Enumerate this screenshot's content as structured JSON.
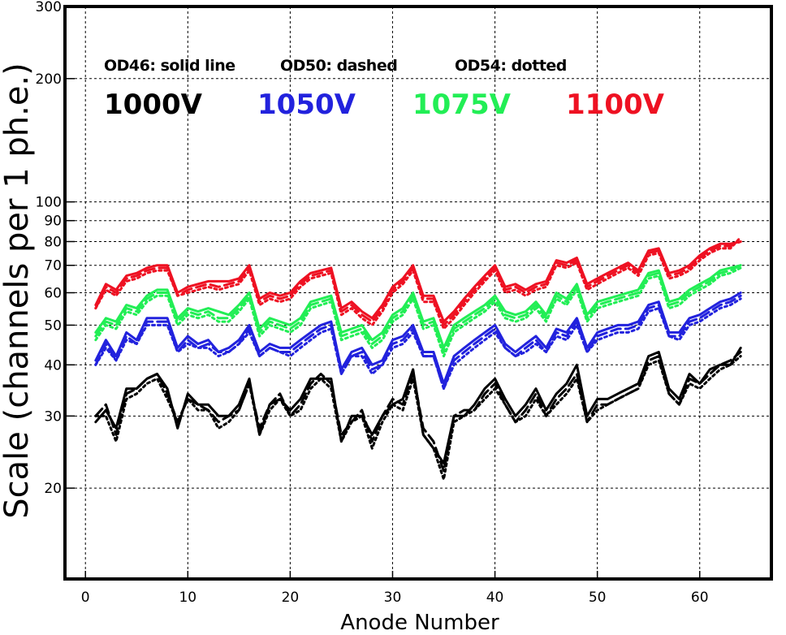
{
  "chart_data": {
    "type": "line",
    "xlabel": "Anode Number",
    "ylabel": "Scale (channels per 1 ph.e.)",
    "xlim": [
      -2,
      67
    ],
    "ylim": [
      12,
      300
    ],
    "yscale": "log",
    "grid": true,
    "x_ticks": [
      0,
      10,
      20,
      30,
      40,
      50,
      60
    ],
    "y_ticks": [
      20,
      30,
      40,
      50,
      60,
      70,
      80,
      90,
      100,
      200,
      300
    ],
    "x": [
      1,
      2,
      3,
      4,
      5,
      6,
      7,
      8,
      9,
      10,
      11,
      12,
      13,
      14,
      15,
      16,
      17,
      18,
      19,
      20,
      21,
      22,
      23,
      24,
      25,
      26,
      27,
      28,
      29,
      30,
      31,
      32,
      33,
      34,
      35,
      36,
      37,
      38,
      39,
      40,
      41,
      42,
      43,
      44,
      45,
      46,
      47,
      48,
      49,
      50,
      51,
      52,
      53,
      54,
      55,
      56,
      57,
      58,
      59,
      60,
      61,
      62,
      63,
      64
    ],
    "annotations": {
      "od46": "OD46: solid line",
      "od50": "OD50: dashed",
      "od54": "OD54: dotted"
    },
    "voltage_labels": [
      {
        "text": "1000V",
        "color": "#000000"
      },
      {
        "text": "1050V",
        "color": "#2222dd"
      },
      {
        "text": "1075V",
        "color": "#22ee55"
      },
      {
        "text": "1100V",
        "color": "#ee1122"
      }
    ],
    "series": [
      {
        "voltage": "1000V",
        "filter": "OD46",
        "style": "solid",
        "color": "#000000",
        "values": [
          29,
          31,
          28,
          35,
          35,
          37,
          38,
          35,
          28,
          34,
          32,
          32,
          30,
          30,
          32,
          37,
          27,
          32,
          33,
          31,
          33,
          37,
          37,
          37,
          26,
          30,
          30,
          27,
          30,
          32,
          33,
          39,
          27,
          25,
          23,
          30,
          30,
          32,
          35,
          37,
          33,
          30,
          32,
          35,
          31,
          34,
          36,
          40,
          30,
          33,
          33,
          34,
          35,
          36,
          42,
          43,
          35,
          33,
          38,
          36,
          39,
          40,
          40,
          44
        ]
      },
      {
        "voltage": "1000V",
        "filter": "OD50",
        "style": "dashed",
        "color": "#000000",
        "values": [
          30,
          32,
          27,
          34,
          35,
          37,
          38,
          34,
          29,
          33,
          32,
          31,
          29,
          30,
          31,
          36,
          28,
          32,
          34,
          30,
          32,
          36,
          38,
          36,
          27,
          29,
          31,
          26,
          30,
          33,
          32,
          38,
          28,
          26,
          22,
          30,
          31,
          31,
          34,
          36,
          32,
          29,
          31,
          34,
          30,
          33,
          35,
          38,
          29,
          32,
          32,
          33,
          34,
          35,
          41,
          42,
          34,
          32,
          37,
          36,
          38,
          40,
          41,
          43
        ]
      },
      {
        "voltage": "1000V",
        "filter": "OD54",
        "style": "dotted",
        "color": "#000000",
        "values": [
          30,
          30,
          26,
          33,
          34,
          36,
          37,
          33,
          29,
          33,
          31,
          31,
          28,
          29,
          31,
          36,
          27,
          31,
          33,
          30,
          31,
          35,
          37,
          35,
          26,
          29,
          30,
          25,
          29,
          32,
          31,
          37,
          27,
          25,
          21,
          29,
          30,
          31,
          33,
          35,
          32,
          29,
          30,
          33,
          30,
          32,
          34,
          37,
          29,
          31,
          32,
          33,
          34,
          35,
          40,
          41,
          34,
          32,
          36,
          35,
          37,
          39,
          40,
          42
        ]
      },
      {
        "voltage": "1050V",
        "filter": "OD46",
        "style": "solid",
        "color": "#2222dd",
        "values": [
          41,
          46,
          42,
          48,
          46,
          52,
          52,
          52,
          44,
          47,
          45,
          46,
          43,
          44,
          46,
          50,
          43,
          45,
          44,
          44,
          46,
          48,
          50,
          51,
          39,
          43,
          44,
          40,
          41,
          46,
          47,
          50,
          43,
          43,
          36,
          42,
          44,
          46,
          48,
          50,
          45,
          43,
          45,
          47,
          44,
          49,
          48,
          52,
          44,
          48,
          49,
          50,
          50,
          51,
          56,
          57,
          48,
          48,
          52,
          53,
          55,
          57,
          58,
          60
        ]
      },
      {
        "voltage": "1050V",
        "filter": "OD50",
        "style": "dashed",
        "color": "#2222dd",
        "values": [
          40,
          45,
          41,
          47,
          45,
          51,
          51,
          51,
          43,
          46,
          44,
          45,
          43,
          43,
          45,
          49,
          42,
          44,
          43,
          43,
          45,
          47,
          49,
          50,
          38,
          42,
          43,
          39,
          40,
          45,
          46,
          49,
          42,
          42,
          35,
          41,
          43,
          45,
          47,
          49,
          44,
          42,
          44,
          46,
          43,
          48,
          47,
          51,
          43,
          47,
          48,
          49,
          49,
          50,
          55,
          56,
          47,
          47,
          51,
          52,
          54,
          56,
          57,
          59
        ]
      },
      {
        "voltage": "1050V",
        "filter": "OD54",
        "style": "dotted",
        "color": "#2222dd",
        "values": [
          40,
          44,
          41,
          46,
          45,
          50,
          50,
          50,
          43,
          45,
          44,
          44,
          42,
          43,
          45,
          48,
          42,
          44,
          43,
          42,
          44,
          46,
          48,
          49,
          38,
          42,
          42,
          38,
          40,
          44,
          45,
          48,
          42,
          42,
          35,
          40,
          42,
          44,
          46,
          48,
          44,
          42,
          43,
          45,
          43,
          47,
          46,
          50,
          43,
          46,
          47,
          48,
          48,
          49,
          54,
          55,
          47,
          46,
          50,
          51,
          53,
          55,
          56,
          58
        ]
      },
      {
        "voltage": "1075V",
        "filter": "OD46",
        "style": "solid",
        "color": "#22ee55",
        "values": [
          48,
          52,
          51,
          56,
          55,
          59,
          61,
          61,
          52,
          55,
          54,
          55,
          54,
          53,
          56,
          60,
          49,
          52,
          51,
          50,
          52,
          57,
          58,
          59,
          48,
          49,
          50,
          46,
          48,
          53,
          55,
          60,
          51,
          52,
          44,
          50,
          52,
          54,
          56,
          59,
          54,
          53,
          54,
          57,
          53,
          60,
          58,
          63,
          53,
          57,
          58,
          59,
          60,
          61,
          67,
          68,
          57,
          58,
          61,
          63,
          65,
          68,
          69,
          70
        ]
      },
      {
        "voltage": "1075V",
        "filter": "OD50",
        "style": "dashed",
        "color": "#22ee55",
        "values": [
          47,
          51,
          50,
          55,
          54,
          58,
          60,
          60,
          51,
          54,
          53,
          54,
          52,
          52,
          55,
          59,
          48,
          51,
          50,
          49,
          51,
          56,
          57,
          58,
          47,
          48,
          49,
          45,
          47,
          52,
          54,
          59,
          50,
          51,
          43,
          49,
          51,
          53,
          55,
          58,
          53,
          52,
          53,
          56,
          52,
          59,
          57,
          62,
          52,
          56,
          57,
          58,
          59,
          60,
          66,
          67,
          56,
          57,
          60,
          62,
          64,
          67,
          68,
          70
        ]
      },
      {
        "voltage": "1075V",
        "filter": "OD54",
        "style": "dotted",
        "color": "#22ee55",
        "values": [
          46,
          50,
          49,
          54,
          53,
          57,
          59,
          59,
          50,
          53,
          52,
          53,
          51,
          51,
          54,
          58,
          47,
          50,
          49,
          48,
          50,
          55,
          56,
          57,
          46,
          47,
          48,
          44,
          46,
          51,
          53,
          58,
          49,
          50,
          42,
          48,
          50,
          52,
          54,
          57,
          52,
          51,
          52,
          55,
          51,
          58,
          56,
          61,
          51,
          55,
          56,
          57,
          58,
          59,
          65,
          66,
          55,
          56,
          59,
          61,
          63,
          66,
          67,
          69
        ]
      },
      {
        "voltage": "1100V",
        "filter": "OD46",
        "style": "solid",
        "color": "#ee1122",
        "values": [
          56,
          63,
          61,
          66,
          67,
          69,
          70,
          70,
          60,
          62,
          63,
          64,
          64,
          64,
          65,
          70,
          58,
          60,
          59,
          60,
          64,
          67,
          68,
          69,
          55,
          57,
          54,
          52,
          56,
          62,
          65,
          70,
          59,
          59,
          51,
          54,
          58,
          62,
          66,
          70,
          62,
          63,
          61,
          63,
          64,
          72,
          71,
          73,
          63,
          65,
          67,
          69,
          71,
          68,
          76,
          77,
          67,
          68,
          70,
          74,
          77,
          79,
          79,
          80
        ]
      },
      {
        "voltage": "1100V",
        "filter": "OD50",
        "style": "dashed",
        "color": "#ee1122",
        "values": [
          55,
          62,
          60,
          65,
          66,
          68,
          69,
          69,
          59,
          61,
          62,
          63,
          62,
          63,
          64,
          69,
          57,
          59,
          58,
          59,
          63,
          66,
          67,
          68,
          54,
          56,
          53,
          51,
          55,
          61,
          64,
          69,
          58,
          58,
          50,
          53,
          57,
          61,
          65,
          69,
          61,
          62,
          60,
          62,
          63,
          71,
          70,
          72,
          62,
          64,
          66,
          68,
          70,
          67,
          75,
          76,
          66,
          67,
          69,
          73,
          76,
          78,
          78,
          80
        ]
      },
      {
        "voltage": "1100V",
        "filter": "OD54",
        "style": "dotted",
        "color": "#ee1122",
        "values": [
          55,
          61,
          59,
          64,
          65,
          67,
          68,
          68,
          59,
          60,
          61,
          62,
          61,
          62,
          63,
          68,
          56,
          58,
          57,
          58,
          62,
          65,
          66,
          67,
          53,
          55,
          52,
          50,
          54,
          60,
          63,
          68,
          57,
          57,
          49,
          52,
          56,
          60,
          64,
          68,
          60,
          61,
          59,
          61,
          62,
          70,
          69,
          71,
          61,
          63,
          65,
          67,
          69,
          66,
          74,
          75,
          65,
          66,
          68,
          72,
          75,
          77,
          77,
          82
        ]
      }
    ]
  }
}
